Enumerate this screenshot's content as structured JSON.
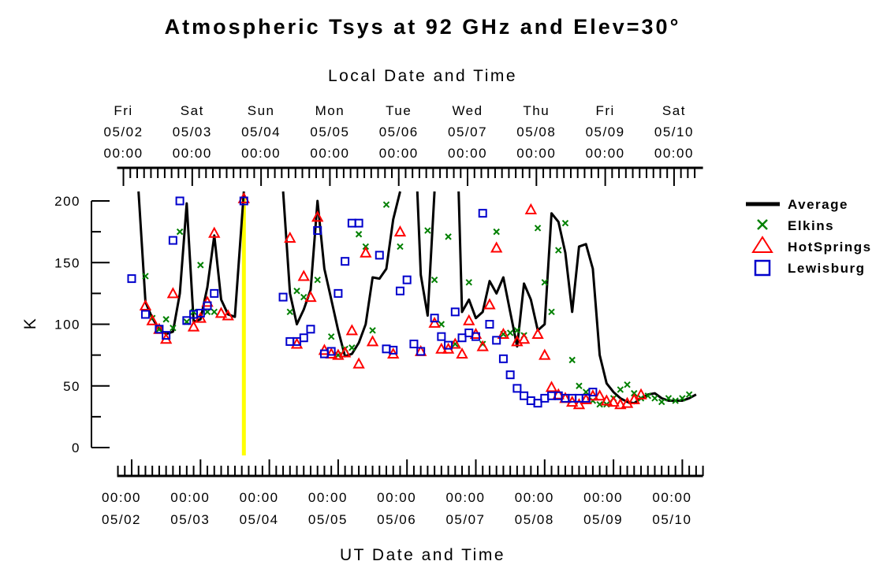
{
  "chart_data": {
    "type": "line",
    "title": "Atmospheric Tsys at 92 GHz and Elev=30°",
    "xlabel_top": "Local Date and Time",
    "xlabel": "UT Date and Time",
    "ylabel": "K",
    "ylim": [
      0,
      200
    ],
    "yticks": [
      "0",
      "50",
      "100",
      "150",
      "200"
    ],
    "x_unit": "days since 05/02 00:00 UT",
    "xlim": [
      -0.2,
      8.3
    ],
    "bottom_ticks": [
      {
        "x": 0,
        "time": "00:00",
        "date": "05/02"
      },
      {
        "x": 1,
        "time": "00:00",
        "date": "05/03"
      },
      {
        "x": 2,
        "time": "00:00",
        "date": "05/04"
      },
      {
        "x": 3,
        "time": "00:00",
        "date": "05/05"
      },
      {
        "x": 4,
        "time": "00:00",
        "date": "05/06"
      },
      {
        "x": 5,
        "time": "00:00",
        "date": "05/07"
      },
      {
        "x": 6,
        "time": "00:00",
        "date": "05/08"
      },
      {
        "x": 7,
        "time": "00:00",
        "date": "05/09"
      },
      {
        "x": 8,
        "time": "00:00",
        "date": "05/10"
      }
    ],
    "top_ticks": [
      {
        "x": -0.12,
        "day": "Fri",
        "date": "05/02",
        "time": "00:00"
      },
      {
        "x": 0.88,
        "day": "Sat",
        "date": "05/03",
        "time": "00:00"
      },
      {
        "x": 1.88,
        "day": "Sun",
        "date": "05/04",
        "time": "00:00"
      },
      {
        "x": 2.88,
        "day": "Mon",
        "date": "05/05",
        "time": "00:00"
      },
      {
        "x": 3.88,
        "day": "Tue",
        "date": "05/06",
        "time": "00:00"
      },
      {
        "x": 4.88,
        "day": "Wed",
        "date": "05/07",
        "time": "00:00"
      },
      {
        "x": 5.88,
        "day": "Thu",
        "date": "05/08",
        "time": "00:00"
      },
      {
        "x": 6.88,
        "day": "Fri",
        "date": "05/09",
        "time": "00:00"
      },
      {
        "x": 7.88,
        "day": "Sat",
        "date": "05/10",
        "time": "00:00"
      }
    ],
    "marker_line": {
      "x": 1.63,
      "color": "#ffff00"
    },
    "legend_position": "right",
    "series": [
      {
        "name": "Average",
        "style": "line",
        "color": "#000000",
        "points": [
          [
            0.1,
            230
          ],
          [
            0.2,
            118
          ],
          [
            0.3,
            105
          ],
          [
            0.4,
            96
          ],
          [
            0.5,
            92
          ],
          [
            0.6,
            94
          ],
          [
            0.7,
            125
          ],
          [
            0.8,
            198
          ],
          [
            0.9,
            102
          ],
          [
            1.0,
            104
          ],
          [
            1.1,
            130
          ],
          [
            1.2,
            172
          ],
          [
            1.3,
            120
          ],
          [
            1.4,
            108
          ],
          [
            1.5,
            106
          ],
          [
            1.63,
            210
          ]
        ],
        "breaks": [
          [
            [
              2.2,
              210
            ],
            [
              2.3,
              125
            ],
            [
              2.4,
              100
            ],
            [
              2.5,
              112
            ],
            [
              2.6,
              128
            ],
            [
              2.7,
              200
            ],
            [
              2.8,
              145
            ],
            [
              2.9,
              120
            ],
            [
              3.0,
              95
            ],
            [
              3.1,
              74
            ],
            [
              3.2,
              76
            ],
            [
              3.3,
              85
            ],
            [
              3.4,
              100
            ],
            [
              3.5,
              138
            ],
            [
              3.6,
              137
            ],
            [
              3.7,
              145
            ],
            [
              3.8,
              185
            ],
            [
              3.9,
              210
            ]
          ],
          [
            [
              4.15,
              210
            ],
            [
              4.2,
              140
            ],
            [
              4.3,
              107
            ],
            [
              4.4,
              210
            ]
          ],
          [
            [
              4.75,
              210
            ],
            [
              4.8,
              110
            ],
            [
              4.9,
              120
            ],
            [
              5.0,
              105
            ],
            [
              5.1,
              110
            ],
            [
              5.2,
              135
            ],
            [
              5.3,
              125
            ],
            [
              5.4,
              138
            ],
            [
              5.5,
              110
            ],
            [
              5.6,
              82
            ],
            [
              5.7,
              133
            ],
            [
              5.8,
              120
            ],
            [
              5.9,
              95
            ],
            [
              6.0,
              100
            ],
            [
              6.1,
              190
            ],
            [
              6.2,
              183
            ],
            [
              6.3,
              158
            ],
            [
              6.4,
              110
            ],
            [
              6.5,
              163
            ],
            [
              6.6,
              165
            ],
            [
              6.7,
              145
            ],
            [
              6.8,
              75
            ],
            [
              6.9,
              52
            ],
            [
              7.0,
              45
            ],
            [
              7.1,
              40
            ],
            [
              7.2,
              37
            ],
            [
              7.3,
              36
            ],
            [
              7.4,
              40
            ],
            [
              7.5,
              43
            ],
            [
              7.6,
              44
            ],
            [
              7.7,
              40
            ],
            [
              7.8,
              38
            ],
            [
              7.9,
              38
            ],
            [
              8.0,
              38
            ],
            [
              8.1,
              40
            ],
            [
              8.2,
              43
            ]
          ]
        ]
      },
      {
        "name": "Elkins",
        "style": "marker",
        "marker": "x",
        "color": "#008000",
        "points": [
          [
            0.2,
            139
          ],
          [
            0.3,
            105
          ],
          [
            0.4,
            96
          ],
          [
            0.5,
            104
          ],
          [
            0.6,
            97
          ],
          [
            0.7,
            175
          ],
          [
            0.8,
            102
          ],
          [
            0.9,
            110
          ],
          [
            1.0,
            148
          ],
          [
            1.1,
            110
          ],
          [
            1.2,
            110
          ],
          [
            2.3,
            110
          ],
          [
            2.4,
            127
          ],
          [
            2.5,
            122
          ],
          [
            2.7,
            136
          ],
          [
            2.9,
            90
          ],
          [
            3.0,
            75
          ],
          [
            3.1,
            80
          ],
          [
            3.2,
            81
          ],
          [
            3.3,
            173
          ],
          [
            3.4,
            163
          ],
          [
            3.5,
            95
          ],
          [
            3.7,
            197
          ],
          [
            3.9,
            163
          ],
          [
            4.3,
            176
          ],
          [
            4.4,
            136
          ],
          [
            4.5,
            100
          ],
          [
            4.6,
            171
          ],
          [
            4.7,
            84
          ],
          [
            4.9,
            134
          ],
          [
            5.1,
            84
          ],
          [
            5.3,
            175
          ],
          [
            5.4,
            92
          ],
          [
            5.5,
            93
          ],
          [
            5.6,
            95
          ],
          [
            5.7,
            91
          ],
          [
            5.9,
            178
          ],
          [
            6.0,
            134
          ],
          [
            6.1,
            110
          ],
          [
            6.2,
            160
          ],
          [
            6.3,
            182
          ],
          [
            6.4,
            71
          ],
          [
            6.5,
            50
          ],
          [
            6.6,
            45
          ],
          [
            6.7,
            38
          ],
          [
            6.8,
            35
          ],
          [
            6.9,
            35
          ],
          [
            7.0,
            40
          ],
          [
            7.1,
            47
          ],
          [
            7.2,
            51
          ],
          [
            7.3,
            44
          ],
          [
            7.4,
            40
          ],
          [
            7.5,
            42
          ],
          [
            7.6,
            40
          ],
          [
            7.7,
            37
          ],
          [
            7.8,
            40
          ],
          [
            7.9,
            38
          ],
          [
            8.0,
            40
          ],
          [
            8.1,
            43
          ]
        ]
      },
      {
        "name": "HotSprings",
        "style": "marker",
        "marker": "triangle",
        "color": "#ff0000",
        "points": [
          [
            0.2,
            115
          ],
          [
            0.3,
            103
          ],
          [
            0.4,
            96
          ],
          [
            0.5,
            88
          ],
          [
            0.6,
            125
          ],
          [
            0.9,
            98
          ],
          [
            1.0,
            105
          ],
          [
            1.1,
            118
          ],
          [
            1.2,
            174
          ],
          [
            1.3,
            109
          ],
          [
            1.4,
            107
          ],
          [
            1.63,
            202
          ],
          [
            2.3,
            170
          ],
          [
            2.4,
            84
          ],
          [
            2.5,
            139
          ],
          [
            2.6,
            122
          ],
          [
            2.7,
            187
          ],
          [
            2.8,
            79
          ],
          [
            2.9,
            76
          ],
          [
            3.0,
            75
          ],
          [
            3.1,
            77
          ],
          [
            3.2,
            95
          ],
          [
            3.3,
            68
          ],
          [
            3.4,
            158
          ],
          [
            3.5,
            86
          ],
          [
            3.8,
            76
          ],
          [
            3.9,
            175
          ],
          [
            4.2,
            78
          ],
          [
            4.4,
            101
          ],
          [
            4.5,
            80
          ],
          [
            4.6,
            80
          ],
          [
            4.7,
            84
          ],
          [
            4.8,
            76
          ],
          [
            4.9,
            103
          ],
          [
            5.0,
            92
          ],
          [
            5.1,
            82
          ],
          [
            5.2,
            116
          ],
          [
            5.3,
            162
          ],
          [
            5.4,
            92
          ],
          [
            5.6,
            86
          ],
          [
            5.7,
            88
          ],
          [
            5.8,
            193
          ],
          [
            5.9,
            92
          ],
          [
            6.0,
            75
          ],
          [
            6.1,
            49
          ],
          [
            6.2,
            43
          ],
          [
            6.3,
            40
          ],
          [
            6.4,
            37
          ],
          [
            6.5,
            35
          ],
          [
            6.6,
            39
          ],
          [
            6.7,
            42
          ],
          [
            6.8,
            42
          ],
          [
            6.9,
            38
          ],
          [
            7.0,
            37
          ],
          [
            7.1,
            35
          ],
          [
            7.2,
            36
          ],
          [
            7.3,
            39
          ],
          [
            7.4,
            43
          ]
        ]
      },
      {
        "name": "Lewisburg",
        "style": "marker",
        "marker": "square",
        "color": "#0000cc",
        "points": [
          [
            0.0,
            137
          ],
          [
            0.2,
            108
          ],
          [
            0.4,
            96
          ],
          [
            0.5,
            91
          ],
          [
            0.6,
            168
          ],
          [
            0.7,
            200
          ],
          [
            0.8,
            103
          ],
          [
            0.9,
            108
          ],
          [
            1.0,
            109
          ],
          [
            1.1,
            115
          ],
          [
            1.2,
            125
          ],
          [
            1.63,
            200
          ],
          [
            2.2,
            122
          ],
          [
            2.3,
            86
          ],
          [
            2.4,
            86
          ],
          [
            2.5,
            89
          ],
          [
            2.6,
            96
          ],
          [
            2.7,
            176
          ],
          [
            2.8,
            76
          ],
          [
            2.9,
            78
          ],
          [
            3.0,
            125
          ],
          [
            3.1,
            151
          ],
          [
            3.2,
            182
          ],
          [
            3.3,
            182
          ],
          [
            3.6,
            156
          ],
          [
            3.7,
            80
          ],
          [
            3.8,
            79
          ],
          [
            3.9,
            127
          ],
          [
            4.0,
            136
          ],
          [
            4.1,
            84
          ],
          [
            4.2,
            78
          ],
          [
            4.4,
            105
          ],
          [
            4.5,
            90
          ],
          [
            4.6,
            83
          ],
          [
            4.7,
            110
          ],
          [
            4.8,
            89
          ],
          [
            4.9,
            93
          ],
          [
            5.0,
            90
          ],
          [
            5.1,
            190
          ],
          [
            5.2,
            100
          ],
          [
            5.3,
            87
          ],
          [
            5.4,
            72
          ],
          [
            5.5,
            59
          ],
          [
            5.6,
            48
          ],
          [
            5.7,
            42
          ],
          [
            5.8,
            38
          ],
          [
            5.9,
            36
          ],
          [
            6.0,
            40
          ],
          [
            6.1,
            42
          ],
          [
            6.2,
            42
          ],
          [
            6.3,
            40
          ],
          [
            6.4,
            40
          ],
          [
            6.5,
            40
          ],
          [
            6.6,
            40
          ],
          [
            6.7,
            45
          ]
        ]
      }
    ]
  }
}
